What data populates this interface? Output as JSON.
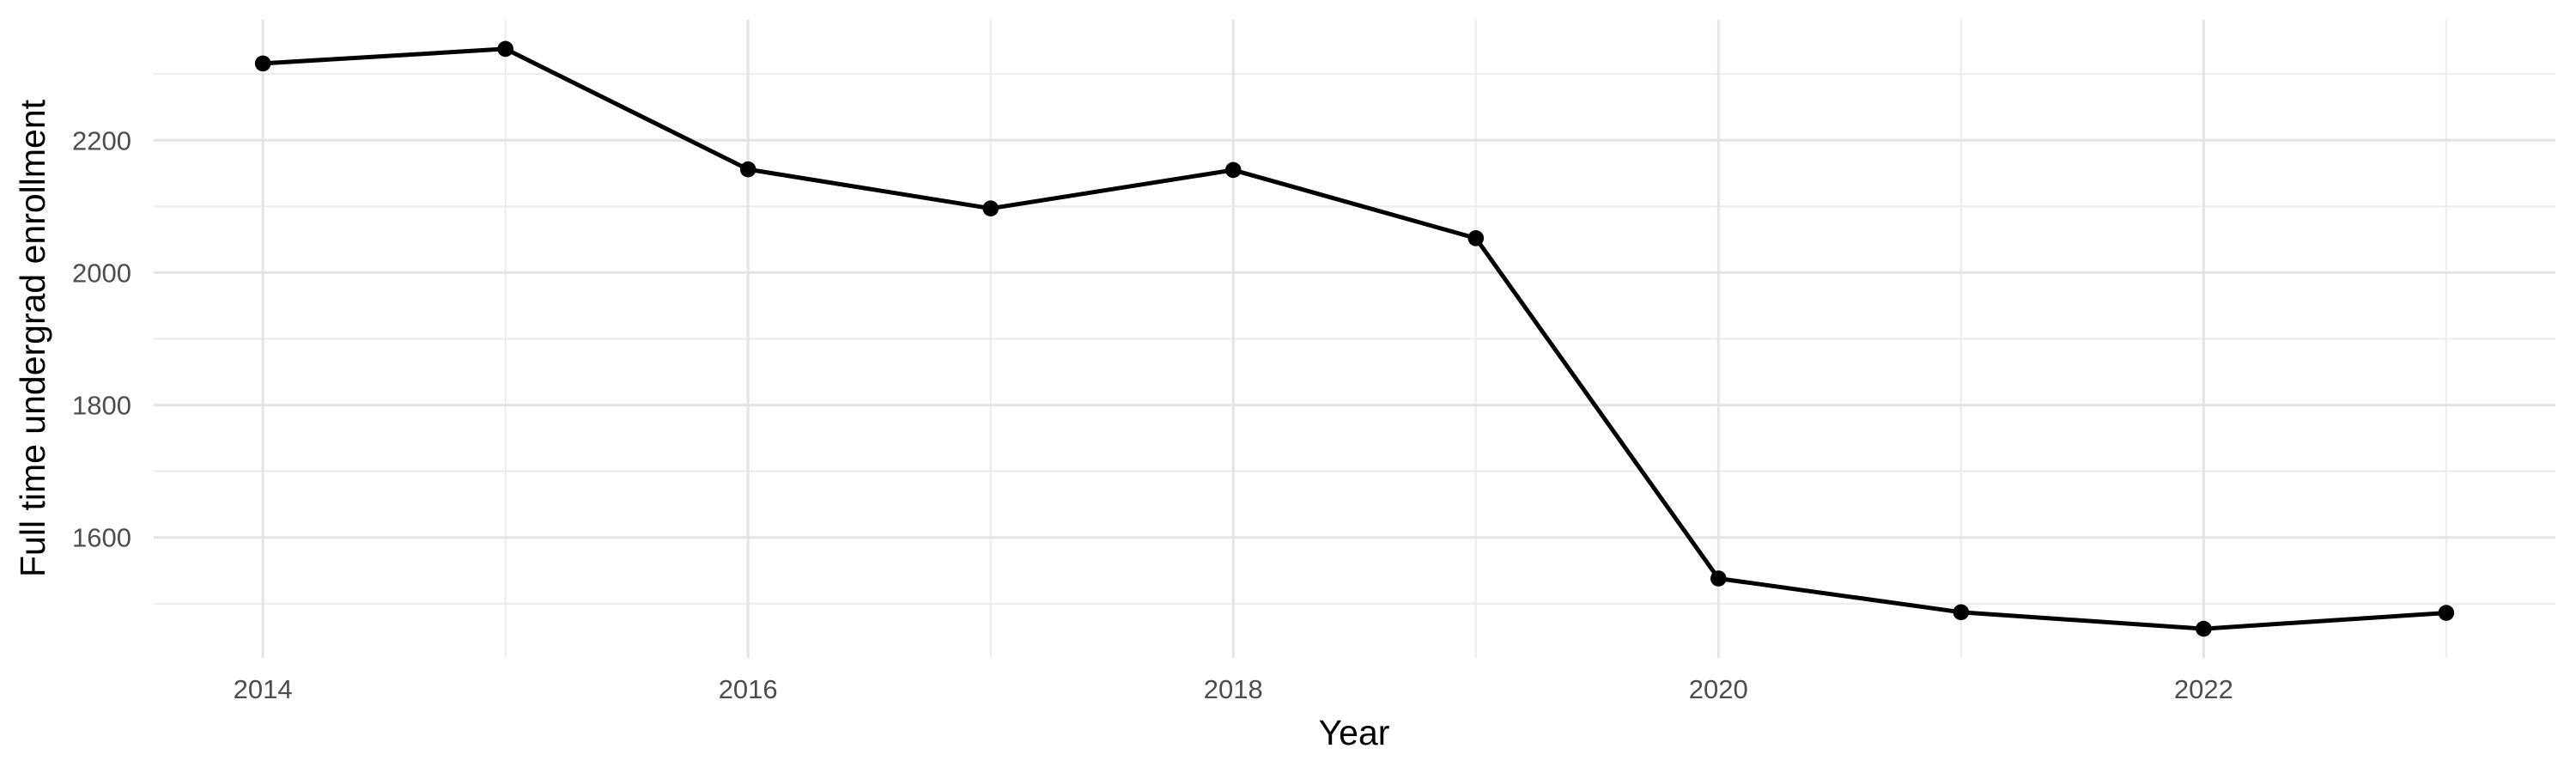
{
  "chart_data": {
    "type": "line",
    "title": "",
    "xlabel": "Year",
    "ylabel": "Full time undergrad enrollment",
    "x": [
      2014,
      2015,
      2016,
      2017,
      2018,
      2019,
      2020,
      2021,
      2022,
      2023
    ],
    "series": [
      {
        "name": "Full time undergrad enrollment",
        "values": [
          2316,
          2338,
          2156,
          2097,
          2155,
          2052,
          1538,
          1487,
          1462,
          1486
        ]
      }
    ],
    "xlim": [
      2013.55,
      2023.45
    ],
    "ylim": [
      1418,
      2382
    ],
    "x_tick_values": [
      2014,
      2016,
      2018,
      2020,
      2022
    ],
    "x_tick_labels": [
      "2014",
      "2016",
      "2018",
      "2020",
      "2022"
    ],
    "x_minor_gridlines": [
      2015,
      2017,
      2019,
      2021,
      2023
    ],
    "y_tick_values": [
      1600,
      1800,
      2000,
      2200
    ],
    "y_tick_labels": [
      "1600",
      "1800",
      "2000",
      "2200"
    ],
    "y_minor_gridlines": [
      1500,
      1700,
      1900,
      2100,
      2300
    ],
    "grid": "major-and-minor",
    "legend": false,
    "point_marker": "filled-circle",
    "colors": {
      "series": "#000000",
      "grid_major": "#e4e4e4",
      "grid_minor": "#ededed",
      "tick_label": "#4d4d4d",
      "axis_title": "#000000",
      "background": "#ffffff"
    }
  }
}
